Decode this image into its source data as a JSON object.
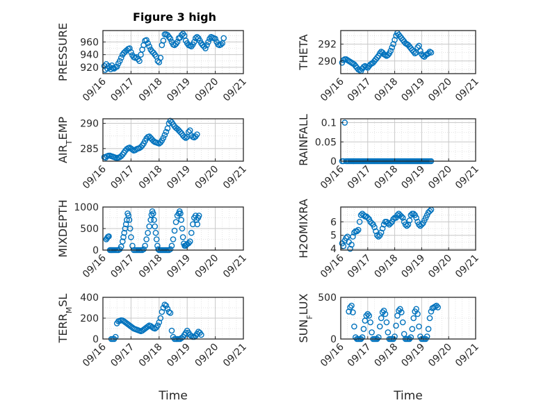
{
  "figure": {
    "title": "Figure 3 high"
  },
  "colors": {
    "marker": "#0072BD",
    "axis": "#262626",
    "grid": "#dcdcdc",
    "background": "#ffffff"
  },
  "chart_data": [
    {
      "type": "scatter",
      "name": "pressure",
      "ylabel": "PRESSURE",
      "title": "Figure 3 high",
      "ylim": [
        910,
        978
      ],
      "yticks": [
        920,
        940,
        960
      ],
      "xlim": [
        16,
        21
      ],
      "xtick_labels": [
        "09/16",
        "09/17",
        "09/18",
        "09/19",
        "09/20",
        "09/21"
      ],
      "xlabel": "",
      "x": [
        16.05,
        16.08,
        16.12,
        16.16,
        16.2,
        16.24,
        16.28,
        16.32,
        16.36,
        16.4,
        16.45,
        16.5,
        16.55,
        16.6,
        16.65,
        16.7,
        16.75,
        16.8,
        16.85,
        16.9,
        16.95,
        17.0,
        17.05,
        17.1,
        17.15,
        17.2,
        17.25,
        17.3,
        17.35,
        17.4,
        17.45,
        17.5,
        17.55,
        17.6,
        17.65,
        17.7,
        17.75,
        17.8,
        17.85,
        17.9,
        17.95,
        18.0,
        18.05,
        18.1,
        18.15,
        18.2,
        18.25,
        18.3,
        18.35,
        18.4,
        18.45,
        18.5,
        18.55,
        18.6,
        18.65,
        18.7,
        18.75,
        18.8,
        18.85,
        18.9,
        18.95,
        19.0,
        19.05,
        19.1,
        19.15,
        19.2,
        19.25,
        19.3,
        19.35,
        19.4,
        19.45,
        19.5,
        19.55,
        19.6,
        19.65,
        19.7,
        19.75,
        19.8,
        19.85,
        19.9,
        19.95,
        20.0,
        20.05,
        20.1,
        20.15,
        20.2,
        20.25,
        20.3
      ],
      "y": [
        922,
        916,
        925,
        918,
        922,
        920,
        917,
        923,
        919,
        918,
        920,
        921,
        926,
        930,
        935,
        940,
        943,
        945,
        947,
        949,
        950,
        944,
        939,
        936,
        935,
        936,
        933,
        930,
        940,
        948,
        955,
        962,
        963,
        958,
        953,
        948,
        945,
        943,
        940,
        937,
        930,
        928,
        935,
        955,
        962,
        972,
        972,
        971,
        968,
        965,
        960,
        956,
        955,
        957,
        960,
        966,
        967,
        971,
        973,
        970,
        962,
        958,
        955,
        954,
        953,
        956,
        960,
        966,
        968,
        966,
        962,
        958,
        955,
        953,
        950,
        955,
        960,
        965,
        968,
        967,
        966,
        965,
        960,
        956,
        955,
        956,
        958,
        966
      ]
    },
    {
      "type": "scatter",
      "name": "theta",
      "ylabel": "THETA",
      "ylim": [
        288.5,
        293.6
      ],
      "yticks": [
        290,
        292
      ],
      "xlim": [
        16,
        21
      ],
      "xtick_labels": [
        "09/16",
        "09/17",
        "09/18",
        "09/19",
        "09/20",
        "09/21"
      ],
      "xlabel": "",
      "x": [
        16.05,
        16.1,
        16.15,
        16.2,
        16.25,
        16.3,
        16.35,
        16.4,
        16.45,
        16.5,
        16.55,
        16.6,
        16.65,
        16.7,
        16.75,
        16.8,
        16.85,
        16.9,
        16.95,
        17.0,
        17.05,
        17.1,
        17.15,
        17.2,
        17.25,
        17.3,
        17.35,
        17.4,
        17.45,
        17.5,
        17.55,
        17.6,
        17.65,
        17.7,
        17.75,
        17.8,
        17.85,
        17.9,
        17.95,
        18.0,
        18.05,
        18.1,
        18.15,
        18.2,
        18.25,
        18.3,
        18.35,
        18.4,
        18.45,
        18.5,
        18.55,
        18.6,
        18.65,
        18.7,
        18.75,
        18.8,
        18.85,
        18.9,
        18.95,
        19.0,
        19.05,
        19.1,
        19.15,
        19.2,
        19.25,
        19.3,
        19.35
      ],
      "y": [
        289.8,
        290.1,
        290.2,
        290.2,
        290.1,
        290.0,
        289.9,
        289.8,
        289.7,
        289.6,
        289.4,
        289.2,
        289.0,
        288.9,
        288.8,
        289.1,
        289.3,
        289.4,
        289.3,
        289.2,
        289.4,
        289.6,
        289.7,
        289.8,
        290.0,
        290.2,
        290.4,
        290.6,
        290.9,
        291.1,
        291.0,
        290.8,
        290.7,
        290.6,
        290.7,
        290.9,
        291.2,
        291.6,
        292.0,
        292.5,
        293.0,
        293.3,
        293.1,
        292.9,
        292.7,
        292.5,
        292.3,
        292.1,
        292.0,
        291.9,
        291.7,
        291.5,
        291.3,
        291.1,
        290.9,
        291.0,
        291.6,
        291.8,
        291.2,
        290.8,
        290.6,
        290.5,
        290.7,
        290.8,
        290.9,
        291.1,
        291.0
      ]
    },
    {
      "type": "scatter",
      "name": "air-temp",
      "ylabel": "AIR_TEMP",
      "ylim": [
        282.5,
        290.9
      ],
      "yticks": [
        285,
        290
      ],
      "xlim": [
        16,
        21
      ],
      "xtick_labels": [
        "09/16",
        "09/17",
        "09/18",
        "09/19",
        "09/20",
        "09/21"
      ],
      "xlabel": "",
      "x": [
        16.05,
        16.1,
        16.15,
        16.2,
        16.25,
        16.3,
        16.35,
        16.4,
        16.45,
        16.5,
        16.55,
        16.6,
        16.65,
        16.7,
        16.75,
        16.8,
        16.85,
        16.9,
        16.95,
        17.0,
        17.05,
        17.1,
        17.15,
        17.2,
        17.25,
        17.3,
        17.35,
        17.4,
        17.45,
        17.5,
        17.55,
        17.6,
        17.65,
        17.7,
        17.75,
        17.8,
        17.85,
        17.9,
        17.95,
        18.0,
        18.05,
        18.1,
        18.15,
        18.2,
        18.25,
        18.3,
        18.35,
        18.4,
        18.45,
        18.5,
        18.55,
        18.6,
        18.65,
        18.7,
        18.75,
        18.8,
        18.85,
        18.9,
        18.95,
        19.0,
        19.05,
        19.1,
        19.15,
        19.2,
        19.25,
        19.3,
        19.35
      ],
      "y": [
        283.3,
        283.2,
        283.5,
        283.6,
        283.6,
        283.5,
        283.4,
        283.3,
        283.2,
        283.1,
        283.2,
        283.3,
        283.5,
        283.8,
        284.2,
        284.6,
        284.9,
        285.1,
        285.2,
        285.0,
        284.8,
        284.6,
        284.7,
        284.9,
        285.0,
        285.1,
        285.3,
        285.6,
        286.0,
        286.5,
        287.0,
        287.3,
        287.4,
        287.1,
        286.8,
        286.5,
        286.3,
        286.2,
        286.1,
        286.0,
        286.2,
        286.6,
        287.1,
        287.7,
        288.3,
        289.0,
        290.0,
        290.5,
        290.2,
        289.8,
        289.4,
        289.1,
        288.9,
        288.6,
        288.3,
        288.0,
        287.6,
        287.3,
        287.1,
        287.3,
        288.3,
        288.6,
        287.6,
        287.3,
        287.2,
        287.4,
        287.8
      ]
    },
    {
      "type": "scatter",
      "name": "rainfall",
      "ylabel": "RAINFALL",
      "ylim": [
        0,
        0.11
      ],
      "yticks": [
        0,
        0.05,
        0.1
      ],
      "ytick_labels": [
        "0",
        "0.05",
        "0.1"
      ],
      "xlim": [
        16,
        21
      ],
      "xtick_labels": [
        "09/16",
        "09/17",
        "09/18",
        "09/19",
        "09/20",
        "09/21"
      ],
      "xlabel": "",
      "x": [
        16.05,
        16.1,
        16.15,
        16.2,
        16.25,
        16.3,
        16.35,
        16.4,
        16.45,
        16.5,
        16.55,
        16.6,
        16.65,
        16.7,
        16.75,
        16.8,
        16.85,
        16.9,
        16.95,
        17.0,
        17.05,
        17.1,
        17.15,
        17.2,
        17.25,
        17.3,
        17.35,
        17.4,
        17.45,
        17.5,
        17.55,
        17.6,
        17.65,
        17.7,
        17.75,
        17.8,
        17.85,
        17.9,
        17.95,
        18.0,
        18.05,
        18.1,
        18.15,
        18.2,
        18.25,
        18.3,
        18.35,
        18.4,
        18.45,
        18.5,
        18.55,
        18.6,
        18.65,
        18.7,
        18.75,
        18.8,
        18.85,
        18.9,
        18.95,
        19.0,
        19.05,
        19.1,
        19.15,
        19.2,
        19.25,
        19.3,
        19.35
      ],
      "y": [
        0,
        0,
        0.1,
        0,
        0,
        0,
        0,
        0,
        0,
        0,
        0,
        0,
        0,
        0,
        0,
        0,
        0,
        0,
        0,
        0,
        0,
        0,
        0,
        0,
        0,
        0,
        0,
        0,
        0,
        0,
        0,
        0,
        0,
        0,
        0,
        0,
        0,
        0,
        0,
        0,
        0,
        0,
        0,
        0,
        0,
        0,
        0,
        0,
        0,
        0,
        0,
        0,
        0,
        0,
        0,
        0,
        0,
        0,
        0,
        0,
        0,
        0,
        0,
        0,
        0,
        0,
        0
      ]
    },
    {
      "type": "scatter",
      "name": "mixdepth",
      "ylabel": "MIXDEPTH",
      "ylim": [
        0,
        1000
      ],
      "yticks": [
        0,
        500,
        1000
      ],
      "xlim": [
        16,
        21
      ],
      "xtick_labels": [
        "09/16",
        "09/17",
        "09/18",
        "09/19",
        "09/20",
        "09/21"
      ],
      "xlabel": "",
      "x": [
        16.12,
        16.15,
        16.18,
        16.21,
        16.25,
        16.29,
        16.32,
        16.36,
        16.4,
        16.45,
        16.5,
        16.55,
        16.6,
        16.65,
        16.7,
        16.73,
        16.76,
        16.79,
        16.82,
        16.85,
        16.88,
        16.91,
        16.94,
        16.97,
        17.0,
        17.05,
        17.1,
        17.15,
        17.2,
        17.25,
        17.3,
        17.35,
        17.4,
        17.45,
        17.5,
        17.55,
        17.6,
        17.65,
        17.7,
        17.73,
        17.76,
        17.79,
        17.82,
        17.85,
        17.88,
        17.91,
        17.94,
        17.97,
        18.0,
        18.05,
        18.1,
        18.15,
        18.2,
        18.25,
        18.3,
        18.35,
        18.4,
        18.45,
        18.5,
        18.55,
        18.6,
        18.65,
        18.7,
        18.73,
        18.76,
        18.79,
        18.82,
        18.85,
        18.88,
        18.91,
        18.94,
        18.97,
        19.0,
        19.05,
        19.1,
        19.15,
        19.2,
        19.25,
        19.3,
        19.33,
        19.36,
        19.39,
        19.42
      ],
      "y": [
        250,
        280,
        310,
        320,
        0,
        0,
        0,
        0,
        0,
        0,
        0,
        0,
        20,
        80,
        200,
        300,
        400,
        500,
        600,
        700,
        850,
        800,
        700,
        500,
        300,
        100,
        0,
        0,
        0,
        0,
        0,
        0,
        0,
        20,
        100,
        250,
        400,
        550,
        700,
        820,
        900,
        850,
        700,
        550,
        400,
        250,
        100,
        20,
        0,
        0,
        0,
        0,
        0,
        0,
        0,
        0,
        20,
        100,
        250,
        450,
        650,
        800,
        850,
        900,
        850,
        700,
        500,
        300,
        150,
        100,
        100,
        120,
        140,
        160,
        200,
        400,
        600,
        750,
        800,
        700,
        600,
        750,
        800
      ]
    },
    {
      "type": "scatter",
      "name": "h2omixra",
      "ylabel": "H2OMIXRA",
      "ylim": [
        3.9,
        7.1
      ],
      "yticks": [
        4,
        5,
        6
      ],
      "xlim": [
        16,
        21
      ],
      "xtick_labels": [
        "09/16",
        "09/17",
        "09/18",
        "09/19",
        "09/20",
        "09/21"
      ],
      "xlabel": "",
      "x": [
        16.05,
        16.1,
        16.15,
        16.2,
        16.25,
        16.3,
        16.35,
        16.4,
        16.45,
        16.5,
        16.55,
        16.6,
        16.65,
        16.7,
        16.75,
        16.8,
        16.85,
        16.9,
        16.95,
        17.0,
        17.05,
        17.1,
        17.15,
        17.2,
        17.25,
        17.3,
        17.35,
        17.4,
        17.45,
        17.5,
        17.55,
        17.6,
        17.65,
        17.7,
        17.75,
        17.8,
        17.85,
        17.9,
        17.95,
        18.0,
        18.05,
        18.1,
        18.15,
        18.2,
        18.25,
        18.3,
        18.35,
        18.4,
        18.45,
        18.5,
        18.55,
        18.6,
        18.65,
        18.7,
        18.75,
        18.8,
        18.85,
        18.9,
        18.95,
        19.0,
        19.05,
        19.1,
        19.15,
        19.2,
        19.25,
        19.3,
        19.35
      ],
      "y": [
        4.4,
        4.2,
        4.6,
        4.8,
        4.9,
        4.5,
        4.0,
        4.3,
        4.9,
        5.2,
        5.3,
        5.3,
        5.4,
        6.0,
        6.5,
        6.6,
        6.5,
        6.4,
        6.4,
        6.3,
        6.2,
        6.0,
        5.9,
        5.8,
        5.6,
        5.3,
        5.0,
        4.9,
        5.0,
        5.2,
        5.5,
        5.8,
        6.0,
        6.0,
        5.9,
        5.8,
        5.9,
        6.0,
        6.2,
        6.3,
        6.3,
        6.5,
        6.6,
        6.5,
        6.4,
        6.3,
        6.0,
        5.8,
        5.7,
        5.8,
        6.1,
        6.5,
        6.6,
        6.6,
        6.5,
        6.3,
        6.0,
        5.8,
        5.7,
        5.8,
        5.9,
        6.1,
        6.3,
        6.5,
        6.7,
        6.8,
        6.9
      ]
    },
    {
      "type": "scatter",
      "name": "terr-msl",
      "ylabel": "TERR_MSL",
      "ylim": [
        0,
        400
      ],
      "yticks": [
        0,
        200,
        400
      ],
      "xlim": [
        16,
        21
      ],
      "xtick_labels": [
        "09/16",
        "09/17",
        "09/18",
        "09/19",
        "09/20",
        "09/21"
      ],
      "xlabel": "Time",
      "x": [
        16.3,
        16.35,
        16.4,
        16.45,
        16.5,
        16.55,
        16.6,
        16.65,
        16.7,
        16.75,
        16.8,
        16.85,
        16.9,
        16.95,
        17.0,
        17.05,
        17.1,
        17.15,
        17.2,
        17.25,
        17.3,
        17.35,
        17.4,
        17.45,
        17.5,
        17.55,
        17.6,
        17.65,
        17.7,
        17.75,
        17.8,
        17.85,
        17.9,
        17.95,
        18.0,
        18.05,
        18.1,
        18.15,
        18.2,
        18.25,
        18.3,
        18.35,
        18.4,
        18.45,
        18.5,
        18.55,
        18.6,
        18.65,
        18.7,
        18.75,
        18.8,
        18.85,
        18.9,
        18.95,
        19.0,
        19.05,
        19.1,
        19.15,
        19.2,
        19.25,
        19.3,
        19.35,
        19.4,
        19.45,
        19.5
      ],
      "y": [
        0,
        0,
        0,
        20,
        150,
        170,
        175,
        180,
        178,
        170,
        160,
        150,
        140,
        130,
        120,
        110,
        100,
        95,
        90,
        85,
        80,
        75,
        80,
        90,
        100,
        110,
        120,
        130,
        125,
        115,
        105,
        100,
        110,
        130,
        160,
        200,
        260,
        300,
        330,
        320,
        290,
        260,
        250,
        80,
        20,
        0,
        0,
        0,
        0,
        0,
        10,
        20,
        40,
        60,
        80,
        60,
        40,
        30,
        20,
        20,
        30,
        50,
        70,
        60,
        40
      ]
    },
    {
      "type": "scatter",
      "name": "sun-flux",
      "ylabel": "SUN_FLUX",
      "ylim": [
        0,
        500
      ],
      "yticks": [
        0,
        500
      ],
      "xlim": [
        16,
        21
      ],
      "xtick_labels": [
        "09/16",
        "09/17",
        "09/18",
        "09/19",
        "09/20",
        "09/21"
      ],
      "xlabel": "Time",
      "x": [
        16.3,
        16.35,
        16.4,
        16.45,
        16.5,
        16.55,
        16.6,
        16.65,
        16.7,
        16.75,
        16.8,
        16.85,
        16.9,
        16.95,
        17.0,
        17.05,
        17.1,
        17.15,
        17.2,
        17.25,
        17.3,
        17.35,
        17.4,
        17.45,
        17.5,
        17.55,
        17.6,
        17.65,
        17.7,
        17.75,
        17.8,
        17.85,
        17.9,
        17.95,
        18.0,
        18.05,
        18.1,
        18.15,
        18.2,
        18.25,
        18.3,
        18.35,
        18.4,
        18.45,
        18.5,
        18.55,
        18.6,
        18.65,
        18.7,
        18.75,
        18.8,
        18.85,
        18.9,
        18.95,
        19.0,
        19.05,
        19.1,
        19.15,
        19.2,
        19.25,
        19.3,
        19.35,
        19.4,
        19.45,
        19.5,
        19.55,
        19.6
      ],
      "y": [
        330,
        380,
        400,
        320,
        150,
        20,
        0,
        0,
        0,
        0,
        20,
        120,
        220,
        280,
        300,
        280,
        200,
        80,
        0,
        0,
        0,
        0,
        20,
        150,
        250,
        320,
        340,
        300,
        200,
        80,
        0,
        0,
        0,
        0,
        30,
        160,
        280,
        340,
        360,
        320,
        200,
        60,
        0,
        0,
        0,
        0,
        20,
        120,
        250,
        330,
        360,
        300,
        150,
        30,
        0,
        0,
        0,
        0,
        30,
        120,
        250,
        330,
        370,
        380,
        390,
        400,
        380
      ]
    }
  ]
}
